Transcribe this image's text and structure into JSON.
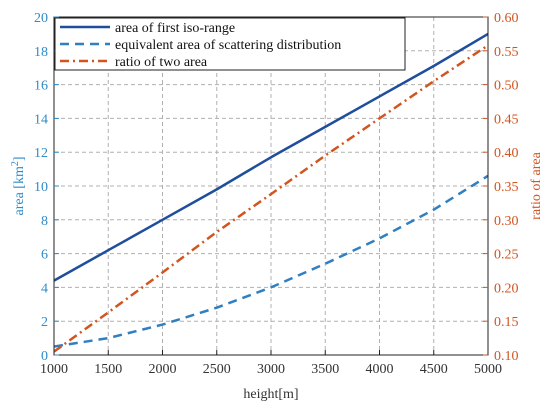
{
  "chart_data": {
    "type": "line",
    "x": [
      1000,
      1500,
      2000,
      2500,
      3000,
      3500,
      4000,
      4500,
      5000
    ],
    "xlabel": "height[m]",
    "xlim": [
      1000,
      5000
    ],
    "xticks": [
      "1000",
      "1500",
      "2000",
      "2500",
      "3000",
      "3500",
      "4000",
      "4500",
      "5000"
    ],
    "ylabel_left": "area [km²]",
    "ylabel_left_parts": [
      "area [km",
      "2",
      "]"
    ],
    "ylim_left": [
      0,
      20
    ],
    "yticks_left": [
      "0",
      "2",
      "4",
      "6",
      "8",
      "10",
      "12",
      "14",
      "16",
      "18",
      "20"
    ],
    "ylabel_right": "ratio of area",
    "ylim_right": [
      0.1,
      0.6
    ],
    "yticks_right": [
      "0.10",
      "0.15",
      "0.20",
      "0.25",
      "0.30",
      "0.35",
      "0.40",
      "0.45",
      "0.50",
      "0.55",
      "0.60"
    ],
    "grid": true,
    "legend_position": "top-left",
    "series": [
      {
        "name": "area of first iso-range",
        "axis": "left",
        "style": "solid",
        "color": "#1f4e9c",
        "values": [
          4.4,
          6.2,
          8.0,
          9.8,
          11.7,
          13.5,
          15.3,
          17.1,
          19.0
        ]
      },
      {
        "name": "equivalent area of scattering distribution",
        "axis": "left",
        "style": "dashed",
        "color": "#2f7fc1",
        "values": [
          0.5,
          1.0,
          1.8,
          2.8,
          4.0,
          5.4,
          6.9,
          8.6,
          10.6
        ]
      },
      {
        "name": "ratio of two area",
        "axis": "right",
        "style": "dashdot",
        "color": "#d2541f",
        "values": [
          0.105,
          0.163,
          0.222,
          0.282,
          0.338,
          0.395,
          0.45,
          0.505,
          0.558
        ]
      }
    ],
    "colors": {
      "left_axis": "#2f8bc9",
      "right_axis": "#d2541f",
      "grid": "#b0b0b0",
      "frame": "#222222"
    }
  }
}
